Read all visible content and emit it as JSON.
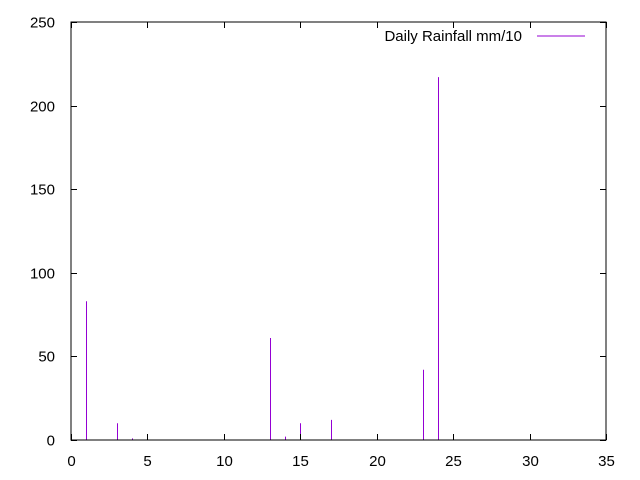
{
  "chart_data": {
    "type": "bar",
    "series": [
      {
        "name": "Daily Rainfall mm/10",
        "color": "#9400d3",
        "x": [
          1,
          3,
          4,
          13,
          14,
          15,
          17,
          23,
          24
        ],
        "values": [
          83,
          10,
          1,
          61,
          2,
          10,
          12,
          42,
          217
        ]
      }
    ],
    "xlim": [
      0,
      35
    ],
    "ylim": [
      0,
      250
    ],
    "xticks": [
      "0",
      "5",
      "10",
      "15",
      "20",
      "25",
      "30",
      "35"
    ],
    "yticks": [
      "0",
      "50",
      "100",
      "150",
      "200",
      "250"
    ],
    "xtick_values": [
      0,
      5,
      10,
      15,
      20,
      25,
      30,
      35
    ],
    "ytick_values": [
      0,
      50,
      100,
      150,
      200,
      250
    ],
    "legend_position": "top-right",
    "grid": false,
    "title": "",
    "xlabel": "",
    "ylabel": ""
  }
}
